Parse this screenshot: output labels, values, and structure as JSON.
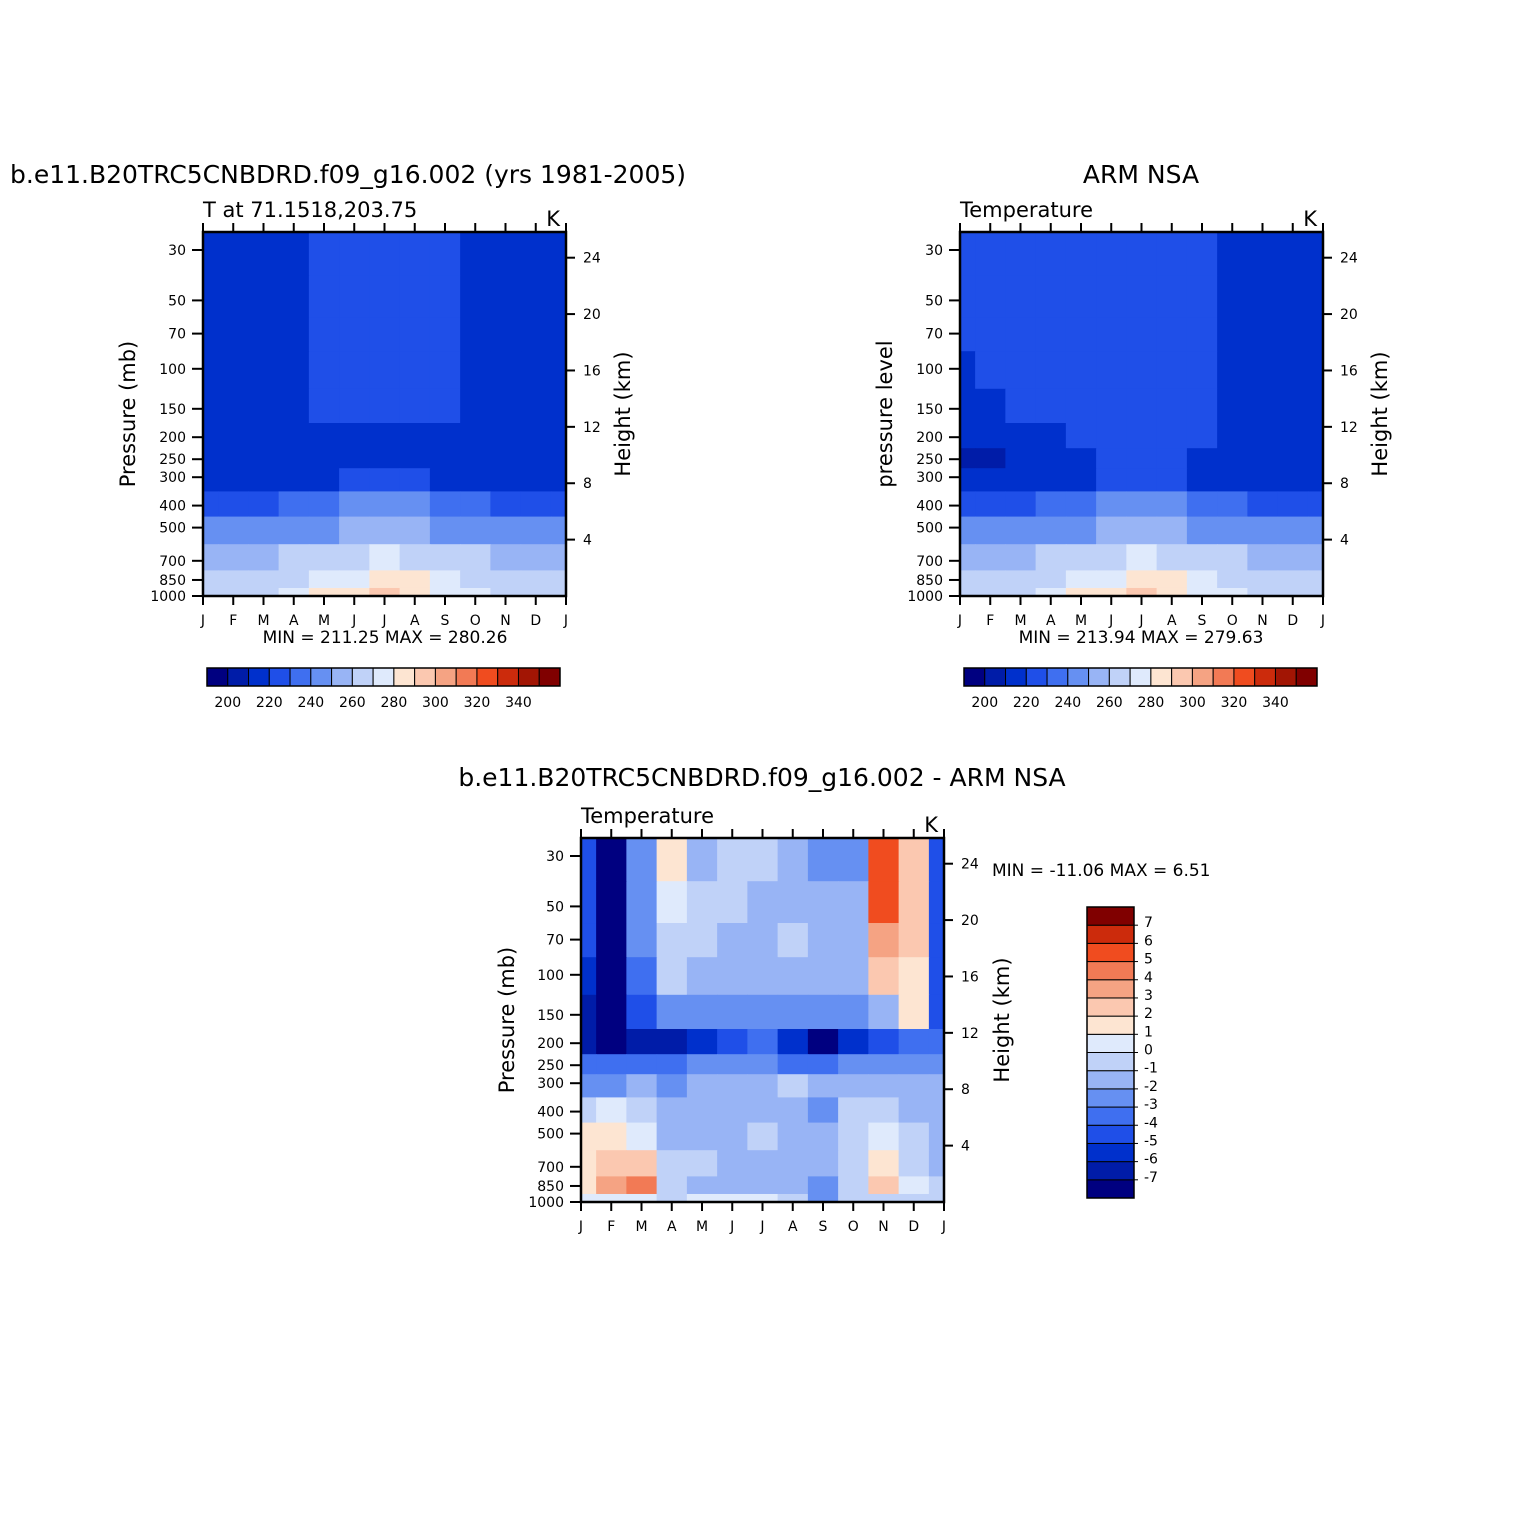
{
  "colors": {
    "abs_scale": [
      "#000080",
      "#001ca8",
      "#0030cc",
      "#1f4fe8",
      "#3f6ff0",
      "#6690f2",
      "#98b4f5",
      "#c0d2f8",
      "#dfeafc",
      "#fde5d2",
      "#fbc8b0",
      "#f5a383",
      "#f27a55",
      "#f04c1f",
      "#cc2b0c",
      "#a21504",
      "#800000"
    ],
    "diff_scale": [
      "#000080",
      "#001ca8",
      "#0030cc",
      "#1f4fe8",
      "#3f6ff0",
      "#6690f2",
      "#98b4f5",
      "#c0d2f8",
      "#dfeafc",
      "#fde5d2",
      "#fbc8b0",
      "#f5a383",
      "#f27a55",
      "#f04c1f",
      "#cc2b0c",
      "#800000"
    ],
    "white": "#ffffff"
  },
  "months": [
    "J",
    "F",
    "M",
    "A",
    "M",
    "J",
    "J",
    "A",
    "S",
    "O",
    "N",
    "D",
    "J"
  ],
  "pressure_ticks": [
    "30",
    "50",
    "70",
    "100",
    "150",
    "200",
    "250",
    "300",
    "400",
    "500",
    "700",
    "850",
    "1000"
  ],
  "height_ticks": [
    "24",
    "20",
    "16",
    "12",
    "8",
    "4"
  ],
  "panels": [
    {
      "id": "model",
      "title": "b.e11.B20TRC5CNBDRD.f09_g16.002 (yrs 1981-2005)",
      "subtitle": "T at 71.1518,203.75",
      "units": "K",
      "ylabel": "Pressure (mb)",
      "ylabel_right": "Height (km)",
      "min_label": "MIN = 211.25 MAX = 280.26"
    },
    {
      "id": "obs",
      "title": "ARM NSA",
      "subtitle": "Temperature",
      "units": "K",
      "ylabel": "pressure level",
      "ylabel_right": "Height (km)",
      "min_label": "MIN = 213.94 MAX = 279.63"
    },
    {
      "id": "diff",
      "title": "b.e11.B20TRC5CNBDRD.f09_g16.002 - ARM NSA",
      "subtitle": "Temperature",
      "units": "K",
      "ylabel": "Pressure (mb)",
      "ylabel_right": "Height (km)",
      "min_label": "MIN = -11.06 MAX = 6.51"
    }
  ],
  "abs_colorbar": {
    "labels": [
      "200",
      "220",
      "240",
      "260",
      "280",
      "300",
      "320",
      "340"
    ]
  },
  "diff_colorbar": {
    "labels": [
      "7",
      "6",
      "5",
      "4",
      "3",
      "2",
      "1",
      "0",
      "-1",
      "-2",
      "-3",
      "-4",
      "-5",
      "-6",
      "-7"
    ]
  },
  "chart_data": [
    {
      "type": "heatmap",
      "title": "b.e11.B20TRC5CNBDRD.f09_g16.002 (yrs 1981-2005)",
      "subtitle": "T at 71.1518,203.75",
      "xlabel": "",
      "ylabel": "Pressure (mb)",
      "units": "K",
      "x": [
        "J",
        "F",
        "M",
        "A",
        "M",
        "J",
        "J",
        "A",
        "S",
        "O",
        "N",
        "D",
        "J"
      ],
      "y": [
        30,
        50,
        70,
        100,
        150,
        200,
        250,
        300,
        400,
        500,
        700,
        850,
        1000
      ],
      "levels": [
        195,
        200,
        205,
        210,
        215,
        220,
        225,
        230,
        235,
        240,
        245,
        250,
        255,
        260,
        265,
        270,
        275,
        280,
        285,
        290,
        295,
        300,
        305,
        310,
        315,
        320,
        325,
        330,
        335,
        340,
        345
      ],
      "min": 211.25,
      "max": 280.26,
      "values": [
        [
          212,
          212,
          213,
          216,
          219,
          220,
          220,
          220,
          218,
          213,
          212,
          212,
          212
        ],
        [
          212,
          212,
          213,
          216,
          219,
          220,
          220,
          220,
          219,
          214,
          212,
          212,
          212
        ],
        [
          212,
          212,
          213,
          216,
          219,
          220,
          220,
          220,
          219,
          215,
          212,
          212,
          212
        ],
        [
          212,
          212,
          213,
          216,
          219,
          220,
          220,
          220,
          219,
          215,
          212,
          212,
          212
        ],
        [
          212,
          212,
          213,
          215,
          218,
          219,
          219,
          219,
          218,
          214,
          212,
          212,
          212
        ],
        [
          212,
          212,
          213,
          214,
          215,
          216,
          216,
          216,
          215,
          213,
          212,
          212,
          212
        ],
        [
          212,
          212,
          213,
          213,
          214,
          215,
          216,
          215,
          214,
          213,
          212,
          212,
          212
        ],
        [
          213,
          213,
          213,
          214,
          215,
          217,
          218,
          217,
          216,
          214,
          213,
          213,
          213
        ],
        [
          220,
          220,
          221,
          223,
          226,
          228,
          229,
          228,
          226,
          223,
          221,
          220,
          220
        ],
        [
          228,
          228,
          229,
          231,
          234,
          236,
          238,
          236,
          234,
          231,
          229,
          228,
          228
        ],
        [
          242,
          242,
          243,
          246,
          250,
          254,
          256,
          254,
          250,
          246,
          243,
          242,
          242
        ],
        [
          248,
          248,
          249,
          253,
          258,
          264,
          268,
          265,
          258,
          252,
          249,
          248,
          248
        ],
        [
          252,
          252,
          253,
          258,
          265,
          272,
          276,
          272,
          264,
          256,
          253,
          252,
          252
        ]
      ]
    },
    {
      "type": "heatmap",
      "title": "ARM NSA",
      "subtitle": "Temperature",
      "xlabel": "",
      "ylabel": "pressure level",
      "units": "K",
      "x": [
        "J",
        "F",
        "M",
        "A",
        "M",
        "J",
        "J",
        "A",
        "S",
        "O",
        "N",
        "D",
        "J"
      ],
      "y": [
        30,
        50,
        70,
        100,
        150,
        200,
        250,
        300,
        400,
        500,
        700,
        850,
        1000
      ],
      "levels": [
        195,
        200,
        205,
        210,
        215,
        220,
        225,
        230,
        235,
        240,
        245,
        250,
        255,
        260,
        265,
        270,
        275,
        280,
        285,
        290,
        295,
        300,
        305,
        310,
        315,
        320,
        325,
        330,
        335,
        340,
        345
      ],
      "min": 213.94,
      "max": 279.63,
      "values": [
        [
          217,
          217,
          218,
          219,
          219,
          220,
          221,
          220,
          218,
          214,
          212,
          212,
          213
        ],
        [
          217,
          217,
          218,
          219,
          219,
          220,
          220,
          220,
          218,
          214,
          212,
          212,
          213
        ],
        [
          217,
          217,
          218,
          219,
          219,
          220,
          220,
          220,
          218,
          214,
          212,
          212,
          212
        ],
        [
          216,
          217,
          218,
          219,
          219,
          220,
          220,
          220,
          218,
          215,
          212,
          212,
          212
        ],
        [
          215,
          216,
          217,
          218,
          218,
          219,
          219,
          219,
          218,
          216,
          212,
          212,
          212
        ],
        [
          213,
          214,
          215,
          216,
          217,
          218,
          218,
          218,
          217,
          215,
          212,
          212,
          212
        ],
        [
          211,
          211,
          212,
          215,
          216,
          217,
          217,
          217,
          215,
          213,
          212,
          212,
          212
        ],
        [
          212,
          212,
          213,
          214,
          215,
          217,
          218,
          217,
          216,
          214,
          213,
          213,
          213
        ],
        [
          220,
          220,
          221,
          223,
          226,
          228,
          229,
          228,
          226,
          223,
          221,
          220,
          220
        ],
        [
          228,
          228,
          229,
          231,
          234,
          236,
          238,
          236,
          234,
          231,
          229,
          228,
          228
        ],
        [
          242,
          242,
          243,
          246,
          250,
          254,
          256,
          254,
          250,
          246,
          243,
          242,
          242
        ],
        [
          248,
          248,
          249,
          253,
          258,
          264,
          268,
          265,
          258,
          252,
          249,
          248,
          248
        ],
        [
          252,
          252,
          253,
          258,
          265,
          272,
          276,
          272,
          264,
          256,
          253,
          252,
          252
        ]
      ]
    },
    {
      "type": "heatmap",
      "title": "b.e11.B20TRC5CNBDRD.f09_g16.002 - ARM NSA",
      "subtitle": "Temperature",
      "xlabel": "",
      "ylabel": "Pressure (mb)",
      "units": "K",
      "x": [
        "J",
        "F",
        "M",
        "A",
        "M",
        "J",
        "J",
        "A",
        "S",
        "O",
        "N",
        "D",
        "J"
      ],
      "y": [
        30,
        50,
        70,
        100,
        150,
        200,
        250,
        300,
        400,
        500,
        700,
        850,
        1000
      ],
      "levels": [
        -8,
        -7,
        -6,
        -5,
        -4,
        -3,
        -2,
        -1,
        0,
        1,
        2,
        3,
        4,
        5,
        6,
        7,
        8
      ],
      "min": -11.06,
      "max": 6.51,
      "values": [
        [
          -5,
          -9,
          -3,
          1,
          -2,
          -1,
          -1,
          -2,
          -3,
          -3,
          5,
          2,
          -5
        ],
        [
          -5,
          -9,
          -3,
          0,
          -1,
          -1,
          -2,
          -2,
          -2,
          -2,
          5,
          2,
          -5
        ],
        [
          -5,
          -9,
          -3,
          -1,
          -1,
          -2,
          -2,
          -1,
          -2,
          -2,
          3,
          2,
          -5
        ],
        [
          -6,
          -9,
          -4,
          -1,
          -2,
          -2,
          -2,
          -2,
          -2,
          -2,
          2,
          1,
          -5
        ],
        [
          -7,
          -9,
          -5,
          -3,
          -3,
          -3,
          -3,
          -3,
          -3,
          -3,
          -2,
          1,
          -5
        ],
        [
          -7,
          -9,
          -7,
          -7,
          -6,
          -5,
          -4,
          -6,
          -8,
          -6,
          -5,
          -4,
          -4
        ],
        [
          -4,
          -4,
          -4,
          -4,
          -3,
          -3,
          -3,
          -4,
          -4,
          -3,
          -3,
          -3,
          -3
        ],
        [
          -3,
          -3,
          -2,
          -3,
          -2,
          -2,
          -2,
          -1,
          -2,
          -2,
          -2,
          -2,
          -2
        ],
        [
          -1,
          0,
          -1,
          -2,
          -2,
          -2,
          -2,
          -2,
          -3,
          -1,
          -1,
          -2,
          -2
        ],
        [
          1,
          1,
          0,
          -2,
          -2,
          -2,
          -1,
          -2,
          -2,
          -1,
          0,
          -1,
          -2
        ],
        [
          1,
          2,
          2,
          -1,
          -1,
          -2,
          -2,
          -2,
          -2,
          -1,
          1,
          -1,
          -2
        ],
        [
          1,
          3,
          4,
          -1,
          -2,
          -2,
          -2,
          -2,
          -3,
          -1,
          2,
          0,
          -1
        ],
        [
          0,
          0,
          0,
          -1,
          0,
          0,
          0,
          -1,
          -3,
          -1,
          -1,
          -1,
          -1
        ]
      ]
    }
  ]
}
